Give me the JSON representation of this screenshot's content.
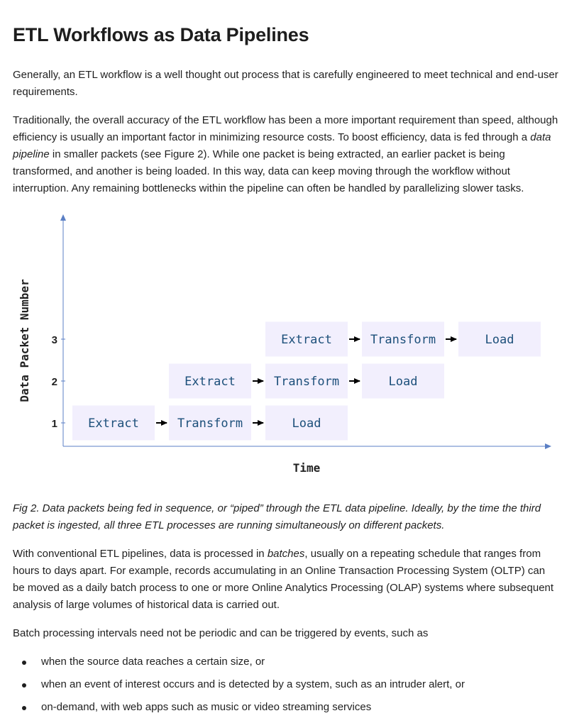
{
  "article": {
    "title": "ETL Workflows as Data Pipelines",
    "p1": "Generally, an ETL workflow is a well thought out process that is carefully engineered to meet technical and end-user requirements.",
    "p2_a": "Traditionally, the overall accuracy of the ETL workflow has been a more important requirement than speed, although efficiency is usually an important factor in minimizing resource costs. To boost efficiency, data is fed through a ",
    "p2_em": "data pipeline",
    "p2_b": " in smaller packets (see Figure 2). While one packet is being extracted, an earlier packet is being transformed, and another is being loaded. In this way, data can keep moving through the workflow without interruption. Any remaining bottlenecks within the pipeline can often be handled by parallelizing slower tasks.",
    "caption": "Fig 2. Data packets being fed in sequence, or “piped” through the ETL data pipeline. Ideally, by the time the third packet is ingested, all three ETL processes are running simultaneously on different packets.",
    "p3_a": "With conventional ETL pipelines, data is processed in ",
    "p3_em": "batches",
    "p3_b": ", usually on a repeating schedule that ranges from hours to days apart. For example, records accumulating in an Online Transaction Processing System (OLTP) can be moved as a daily batch process to one or more Online Analytics Processing (OLAP) systems where subsequent analysis of large volumes of historical data is carried out.",
    "p4": "Batch processing intervals need not be periodic and can be triggered by events, such as",
    "bullets": [
      "when the source data reaches a certain size, or",
      "when an event of interest occurs and is detected by a system, such as an intruder alert, or",
      "on-demand, with web apps such as music or video streaming services"
    ]
  },
  "chart_data": {
    "type": "diagram",
    "xlabel": "Time",
    "ylabel": "Data Packet Number",
    "y_ticks": [
      "1",
      "2",
      "3"
    ],
    "stages": [
      "Extract",
      "Transform",
      "Load"
    ],
    "packets": [
      {
        "packet": 1,
        "start_slot": 0
      },
      {
        "packet": 2,
        "start_slot": 1
      },
      {
        "packet": 3,
        "start_slot": 2
      }
    ],
    "colors": {
      "box_fill": "#f2effd",
      "box_text": "#1c4f7a",
      "axis": "#5b7fc4",
      "arrow": "#000000"
    }
  }
}
